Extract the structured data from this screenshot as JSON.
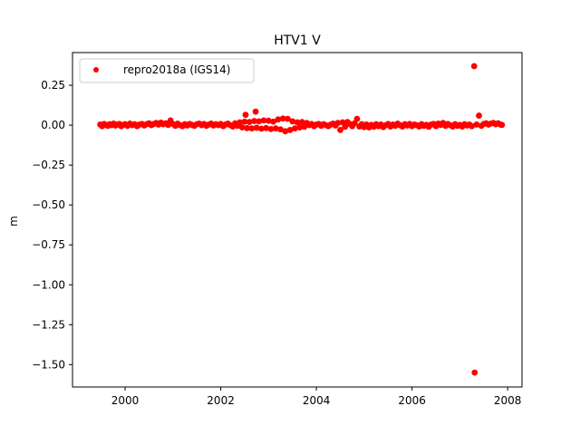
{
  "chart_data": {
    "type": "scatter",
    "title": "HTV1 V",
    "xlabel": "",
    "ylabel": "m",
    "xlim": [
      1998.9,
      2008.3
    ],
    "ylim": [
      -1.64,
      0.455
    ],
    "grid": false,
    "legend_position": "upper-left",
    "x_ticks": [
      2000,
      2002,
      2004,
      2006,
      2008
    ],
    "x_tick_labels": [
      "2000",
      "2002",
      "2004",
      "2006",
      "2008"
    ],
    "y_ticks": [
      0.25,
      0.0,
      -0.25,
      -0.5,
      -0.75,
      -1.0,
      -1.25,
      -1.5
    ],
    "y_tick_labels": [
      "0.25",
      "0.00",
      "−0.25",
      "−0.50",
      "−0.75",
      "−1.00",
      "−1.25",
      "−1.50"
    ],
    "series": [
      {
        "name": "repro2018a (IGS14)",
        "color": "#ff0000",
        "marker": "circle",
        "points": [
          [
            1999.48,
            0.004
          ],
          [
            1999.52,
            -0.006
          ],
          [
            1999.56,
            0.008
          ],
          [
            1999.6,
            0.002
          ],
          [
            1999.64,
            -0.004
          ],
          [
            1999.68,
            0.006
          ],
          [
            1999.72,
            0.0
          ],
          [
            1999.76,
            0.01
          ],
          [
            1999.8,
            -0.002
          ],
          [
            1999.84,
            0.004
          ],
          [
            1999.88,
            0.008
          ],
          [
            1999.92,
            -0.006
          ],
          [
            1999.96,
            0.002
          ],
          [
            2000.0,
            0.006
          ],
          [
            2000.05,
            -0.004
          ],
          [
            2000.1,
            0.01
          ],
          [
            2000.15,
            0.0
          ],
          [
            2000.2,
            0.006
          ],
          [
            2000.25,
            -0.006
          ],
          [
            2000.3,
            0.004
          ],
          [
            2000.35,
            0.008
          ],
          [
            2000.4,
            -0.002
          ],
          [
            2000.45,
            0.006
          ],
          [
            2000.5,
            0.012
          ],
          [
            2000.55,
            0.0
          ],
          [
            2000.6,
            0.008
          ],
          [
            2000.65,
            0.014
          ],
          [
            2000.7,
            0.004
          ],
          [
            2000.75,
            0.016
          ],
          [
            2000.8,
            0.006
          ],
          [
            2000.85,
            0.012
          ],
          [
            2000.9,
            0.002
          ],
          [
            2000.95,
            0.03
          ],
          [
            2001.0,
            0.008
          ],
          [
            2001.05,
            -0.004
          ],
          [
            2001.1,
            0.01
          ],
          [
            2001.15,
            0.0
          ],
          [
            2001.2,
            -0.006
          ],
          [
            2001.25,
            0.006
          ],
          [
            2001.3,
            -0.002
          ],
          [
            2001.35,
            0.008
          ],
          [
            2001.4,
            0.002
          ],
          [
            2001.45,
            -0.004
          ],
          [
            2001.5,
            0.006
          ],
          [
            2001.55,
            0.01
          ],
          [
            2001.6,
            0.0
          ],
          [
            2001.65,
            0.008
          ],
          [
            2001.7,
            -0.004
          ],
          [
            2001.75,
            0.004
          ],
          [
            2001.8,
            0.01
          ],
          [
            2001.85,
            -0.002
          ],
          [
            2001.9,
            0.006
          ],
          [
            2001.95,
            0.0
          ],
          [
            2002.0,
            0.008
          ],
          [
            2002.05,
            -0.006
          ],
          [
            2002.1,
            0.004
          ],
          [
            2002.15,
            0.01
          ],
          [
            2002.2,
            0.0
          ],
          [
            2002.25,
            -0.008
          ],
          [
            2002.3,
            0.012
          ],
          [
            2002.35,
            -0.004
          ],
          [
            2002.4,
            0.018
          ],
          [
            2002.45,
            -0.014
          ],
          [
            2002.5,
            0.022
          ],
          [
            2002.52,
            0.065
          ],
          [
            2002.55,
            -0.018
          ],
          [
            2002.6,
            0.02
          ],
          [
            2002.65,
            -0.02
          ],
          [
            2002.7,
            0.026
          ],
          [
            2002.73,
            0.085
          ],
          [
            2002.75,
            -0.016
          ],
          [
            2002.8,
            0.024
          ],
          [
            2002.85,
            -0.022
          ],
          [
            2002.9,
            0.03
          ],
          [
            2002.95,
            -0.018
          ],
          [
            2003.0,
            0.028
          ],
          [
            2003.05,
            -0.024
          ],
          [
            2003.1,
            0.022
          ],
          [
            2003.15,
            -0.02
          ],
          [
            2003.2,
            0.036
          ],
          [
            2003.25,
            -0.026
          ],
          [
            2003.3,
            0.042
          ],
          [
            2003.35,
            -0.038
          ],
          [
            2003.4,
            0.04
          ],
          [
            2003.45,
            -0.03
          ],
          [
            2003.5,
            0.024
          ],
          [
            2003.55,
            -0.02
          ],
          [
            2003.6,
            0.018
          ],
          [
            2003.65,
            -0.014
          ],
          [
            2003.7,
            0.02
          ],
          [
            2003.75,
            -0.01
          ],
          [
            2003.8,
            0.014
          ],
          [
            2003.85,
            0.0
          ],
          [
            2003.9,
            0.008
          ],
          [
            2003.95,
            -0.006
          ],
          [
            2004.0,
            0.004
          ],
          [
            2004.05,
            0.008
          ],
          [
            2004.1,
            -0.004
          ],
          [
            2004.15,
            0.006
          ],
          [
            2004.2,
            0.0
          ],
          [
            2004.25,
            -0.006
          ],
          [
            2004.3,
            0.004
          ],
          [
            2004.35,
            0.01
          ],
          [
            2004.4,
            -0.002
          ],
          [
            2004.45,
            0.014
          ],
          [
            2004.5,
            -0.03
          ],
          [
            2004.55,
            0.018
          ],
          [
            2004.6,
            -0.01
          ],
          [
            2004.65,
            0.02
          ],
          [
            2004.7,
            0.008
          ],
          [
            2004.75,
            -0.006
          ],
          [
            2004.8,
            0.012
          ],
          [
            2004.85,
            0.04
          ],
          [
            2004.9,
            -0.008
          ],
          [
            2004.95,
            0.006
          ],
          [
            2005.0,
            -0.012
          ],
          [
            2005.05,
            0.004
          ],
          [
            2005.1,
            -0.014
          ],
          [
            2005.15,
            0.002
          ],
          [
            2005.2,
            -0.01
          ],
          [
            2005.25,
            0.006
          ],
          [
            2005.3,
            -0.006
          ],
          [
            2005.35,
            0.004
          ],
          [
            2005.4,
            -0.012
          ],
          [
            2005.45,
            0.0
          ],
          [
            2005.5,
            0.008
          ],
          [
            2005.55,
            -0.008
          ],
          [
            2005.6,
            0.004
          ],
          [
            2005.65,
            -0.004
          ],
          [
            2005.7,
            0.01
          ],
          [
            2005.75,
            0.0
          ],
          [
            2005.8,
            -0.008
          ],
          [
            2005.85,
            0.006
          ],
          [
            2005.9,
            -0.002
          ],
          [
            2005.95,
            0.008
          ],
          [
            2006.0,
            -0.006
          ],
          [
            2006.05,
            0.004
          ],
          [
            2006.1,
            0.0
          ],
          [
            2006.15,
            -0.008
          ],
          [
            2006.2,
            0.006
          ],
          [
            2006.25,
            -0.004
          ],
          [
            2006.3,
            0.002
          ],
          [
            2006.35,
            -0.01
          ],
          [
            2006.4,
            0.004
          ],
          [
            2006.45,
            0.008
          ],
          [
            2006.5,
            -0.006
          ],
          [
            2006.55,
            0.01
          ],
          [
            2006.6,
            0.002
          ],
          [
            2006.65,
            0.014
          ],
          [
            2006.7,
            -0.004
          ],
          [
            2006.75,
            0.008
          ],
          [
            2006.8,
            0.0
          ],
          [
            2006.85,
            -0.008
          ],
          [
            2006.9,
            0.006
          ],
          [
            2006.95,
            -0.004
          ],
          [
            2007.0,
            0.002
          ],
          [
            2007.05,
            -0.008
          ],
          [
            2007.1,
            0.006
          ],
          [
            2007.15,
            -0.002
          ],
          [
            2007.2,
            0.004
          ],
          [
            2007.25,
            -0.006
          ],
          [
            2007.3,
            0.37
          ],
          [
            2007.31,
            -1.55
          ],
          [
            2007.35,
            0.004
          ],
          [
            2007.4,
            0.06
          ],
          [
            2007.45,
            -0.004
          ],
          [
            2007.5,
            0.008
          ],
          [
            2007.55,
            0.012
          ],
          [
            2007.6,
            0.004
          ],
          [
            2007.65,
            0.01
          ],
          [
            2007.7,
            0.014
          ],
          [
            2007.75,
            0.006
          ],
          [
            2007.8,
            0.012
          ],
          [
            2007.85,
            0.004
          ],
          [
            2007.88,
            0.002
          ]
        ]
      }
    ]
  }
}
